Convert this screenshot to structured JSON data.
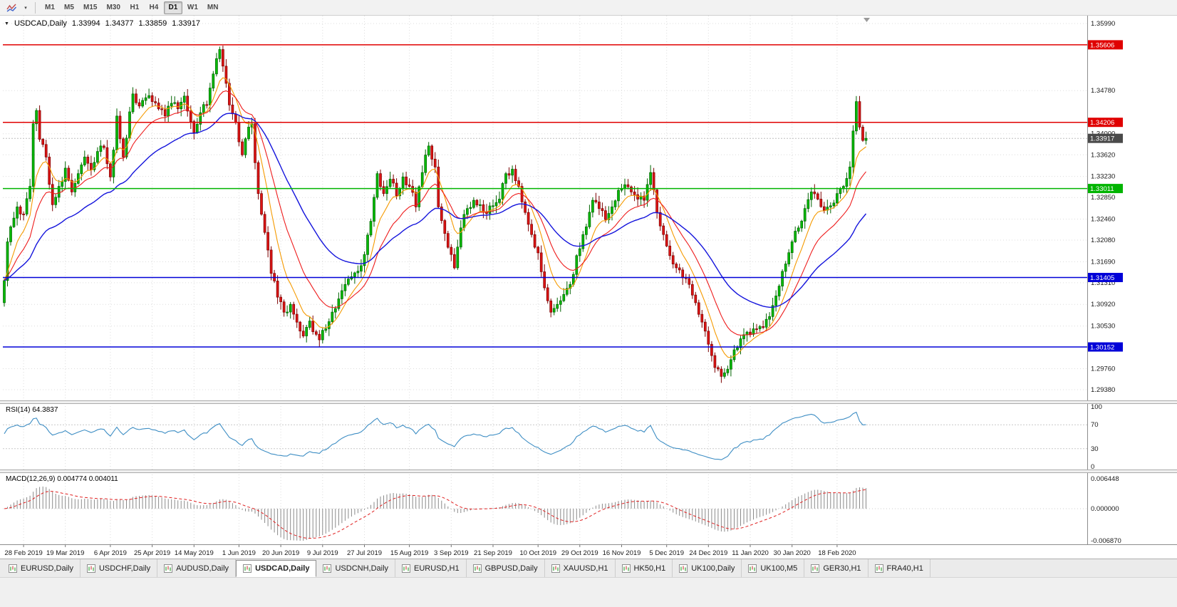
{
  "toolbar": {
    "timeframes": [
      "M1",
      "M5",
      "M15",
      "M30",
      "H1",
      "H4",
      "D1",
      "W1",
      "MN"
    ],
    "active_timeframe": "D1"
  },
  "chart": {
    "symbol_label": "USDCAD,Daily",
    "ohlc": {
      "open": "1.33994",
      "high": "1.34377",
      "low": "1.33859",
      "close": "1.33917"
    },
    "price_scale": [
      "1.35990",
      "1.34780",
      "1.34000",
      "1.33620",
      "1.33230",
      "1.32850",
      "1.32460",
      "1.32080",
      "1.31690",
      "1.31310",
      "1.30920",
      "1.30530",
      "1.29760",
      "1.29380"
    ],
    "levels": [
      {
        "price": "1.35606",
        "color": "#e00000"
      },
      {
        "price": "1.34206",
        "color": "#e00000"
      },
      {
        "price": "1.33011",
        "color": "#00b400"
      },
      {
        "price": "1.31405",
        "color": "#0000d8"
      },
      {
        "price": "1.30152",
        "color": "#0000d8"
      }
    ],
    "bid": {
      "price": "1.33917",
      "badge_color": "#4a4a4a"
    },
    "dates": {
      "labels": [
        "28 Feb 2019",
        "19 Mar 2019",
        "6 Apr 2019",
        "25 Apr 2019",
        "14 May 2019",
        "1 Jun 2019",
        "20 Jun 2019",
        "9 Jul 2019",
        "27 Jul 2019",
        "15 Aug 2019",
        "3 Sep 2019",
        "21 Sep 2019",
        "10 Oct 2019",
        "29 Oct 2019",
        "16 Nov 2019",
        "5 Dec 2019",
        "24 Dec 2019",
        "11 Jan 2020",
        "30 Jan 2020",
        "18 Feb 2020"
      ],
      "first_index": 6,
      "index_step": 13.3
    },
    "colors": {
      "up": "#00ba00",
      "down": "#dc1414",
      "up_edge": "#006400",
      "down_edge": "#7c0000",
      "ma_fast": "#f59a00",
      "ma_mid": "#ee1c1c",
      "ma_slow": "#1414dc"
    },
    "anchors": [
      [
        0,
        1.3135
      ],
      [
        1,
        1.3205
      ],
      [
        2,
        1.3232
      ],
      [
        4,
        1.3268
      ],
      [
        6,
        1.3255
      ],
      [
        8,
        1.3305
      ],
      [
        9,
        1.3418
      ],
      [
        10,
        1.3442
      ],
      [
        11,
        1.339
      ],
      [
        13,
        1.3358
      ],
      [
        15,
        1.3272
      ],
      [
        17,
        1.3305
      ],
      [
        19,
        1.3338
      ],
      [
        21,
        1.3295
      ],
      [
        23,
        1.3328
      ],
      [
        25,
        1.3358
      ],
      [
        27,
        1.3335
      ],
      [
        29,
        1.3368
      ],
      [
        31,
        1.3375
      ],
      [
        33,
        1.3322
      ],
      [
        35,
        1.3432
      ],
      [
        37,
        1.3358
      ],
      [
        40,
        1.3472
      ],
      [
        42,
        1.345
      ],
      [
        44,
        1.3465
      ],
      [
        46,
        1.3458
      ],
      [
        48,
        1.3445
      ],
      [
        50,
        1.3432
      ],
      [
        52,
        1.3455
      ],
      [
        54,
        1.3445
      ],
      [
        56,
        1.3468
      ],
      [
        58,
        1.3422
      ],
      [
        59,
        1.3402
      ],
      [
        61,
        1.3438
      ],
      [
        63,
        1.3452
      ],
      [
        65,
        1.3508
      ],
      [
        67,
        1.3552
      ],
      [
        68,
        1.3522
      ],
      [
        70,
        1.3452
      ],
      [
        72,
        1.342
      ],
      [
        74,
        1.3362
      ],
      [
        76,
        1.3412
      ],
      [
        77,
        1.3418
      ],
      [
        79,
        1.3292
      ],
      [
        81,
        1.3222
      ],
      [
        83,
        1.3148
      ],
      [
        85,
        1.3105
      ],
      [
        87,
        1.3078
      ],
      [
        89,
        1.3092
      ],
      [
        91,
        1.306
      ],
      [
        93,
        1.3035
      ],
      [
        95,
        1.3062
      ],
      [
        97,
        1.3038
      ],
      [
        98,
        1.3028
      ],
      [
        100,
        1.3048
      ],
      [
        102,
        1.3078
      ],
      [
        104,
        1.3102
      ],
      [
        106,
        1.3128
      ],
      [
        108,
        1.3142
      ],
      [
        110,
        1.3152
      ],
      [
        112,
        1.3182
      ],
      [
        114,
        1.3242
      ],
      [
        116,
        1.3328
      ],
      [
        118,
        1.3292
      ],
      [
        120,
        1.3318
      ],
      [
        122,
        1.3288
      ],
      [
        124,
        1.3322
      ],
      [
        126,
        1.3305
      ],
      [
        128,
        1.3268
      ],
      [
        130,
        1.333
      ],
      [
        132,
        1.3378
      ],
      [
        134,
        1.334
      ],
      [
        135,
        1.3268
      ],
      [
        137,
        1.322
      ],
      [
        139,
        1.3182
      ],
      [
        140,
        1.3158
      ],
      [
        142,
        1.323
      ],
      [
        144,
        1.3265
      ],
      [
        146,
        1.328
      ],
      [
        148,
        1.3272
      ],
      [
        150,
        1.3256
      ],
      [
        152,
        1.327
      ],
      [
        154,
        1.3282
      ],
      [
        156,
        1.3328
      ],
      [
        158,
        1.3336
      ],
      [
        160,
        1.3305
      ],
      [
        162,
        1.3258
      ],
      [
        164,
        1.3218
      ],
      [
        166,
        1.3185
      ],
      [
        168,
        1.3122
      ],
      [
        170,
        1.3078
      ],
      [
        172,
        1.3092
      ],
      [
        174,
        1.311
      ],
      [
        176,
        1.3128
      ],
      [
        178,
        1.318
      ],
      [
        180,
        1.3218
      ],
      [
        181,
        1.3232
      ],
      [
        183,
        1.328
      ],
      [
        185,
        1.3265
      ],
      [
        187,
        1.3245
      ],
      [
        189,
        1.3268
      ],
      [
        191,
        1.3298
      ],
      [
        193,
        1.3308
      ],
      [
        195,
        1.3295
      ],
      [
        197,
        1.3282
      ],
      [
        199,
        1.328
      ],
      [
        201,
        1.333
      ],
      [
        203,
        1.3258
      ],
      [
        205,
        1.3218
      ],
      [
        207,
        1.318
      ],
      [
        209,
        1.3158
      ],
      [
        211,
        1.314
      ],
      [
        213,
        1.3128
      ],
      [
        215,
        1.3095
      ],
      [
        217,
        1.306
      ],
      [
        219,
        1.302
      ],
      [
        221,
        1.2978
      ],
      [
        223,
        1.2962
      ],
      [
        225,
        1.2975
      ],
      [
        227,
        1.301
      ],
      [
        229,
        1.303
      ],
      [
        231,
        1.3042
      ],
      [
        233,
        1.3048
      ],
      [
        235,
        1.3052
      ],
      [
        237,
        1.3065
      ],
      [
        239,
        1.309
      ],
      [
        241,
        1.3125
      ],
      [
        243,
        1.3165
      ],
      [
        245,
        1.3205
      ],
      [
        247,
        1.323
      ],
      [
        249,
        1.3265
      ],
      [
        251,
        1.3295
      ],
      [
        253,
        1.3282
      ],
      [
        255,
        1.3262
      ],
      [
        257,
        1.327
      ],
      [
        259,
        1.3292
      ],
      [
        261,
        1.3305
      ],
      [
        263,
        1.334
      ],
      [
        264,
        1.3405
      ],
      [
        265,
        1.3458
      ],
      [
        266,
        1.3412
      ],
      [
        267,
        1.3388
      ],
      [
        268,
        1.33917
      ]
    ]
  },
  "rsi": {
    "label_text": "RSI(14) 64.3837",
    "axis_labels": [
      "100",
      "70",
      "30",
      "0"
    ],
    "color": "#3e8ec4"
  },
  "macd": {
    "label_text": "MACD(12,26,9) 0.004774 0.004011",
    "axis_labels": [
      "0.006448",
      "0.000000",
      "-0.006870"
    ],
    "hist_color": "#8a8a8a",
    "signal_color": "#e02020"
  },
  "tabs": [
    "EURUSD,Daily",
    "USDCHF,Daily",
    "AUDUSD,Daily",
    "USDCAD,Daily",
    "USDCNH,Daily",
    "EURUSD,H1",
    "GBPUSD,Daily",
    "XAUUSD,H1",
    "HK50,H1",
    "UK100,Daily",
    "UK100,M5",
    "GER30,H1",
    "FRA40,H1"
  ],
  "active_tab": "USDCAD,Daily"
}
